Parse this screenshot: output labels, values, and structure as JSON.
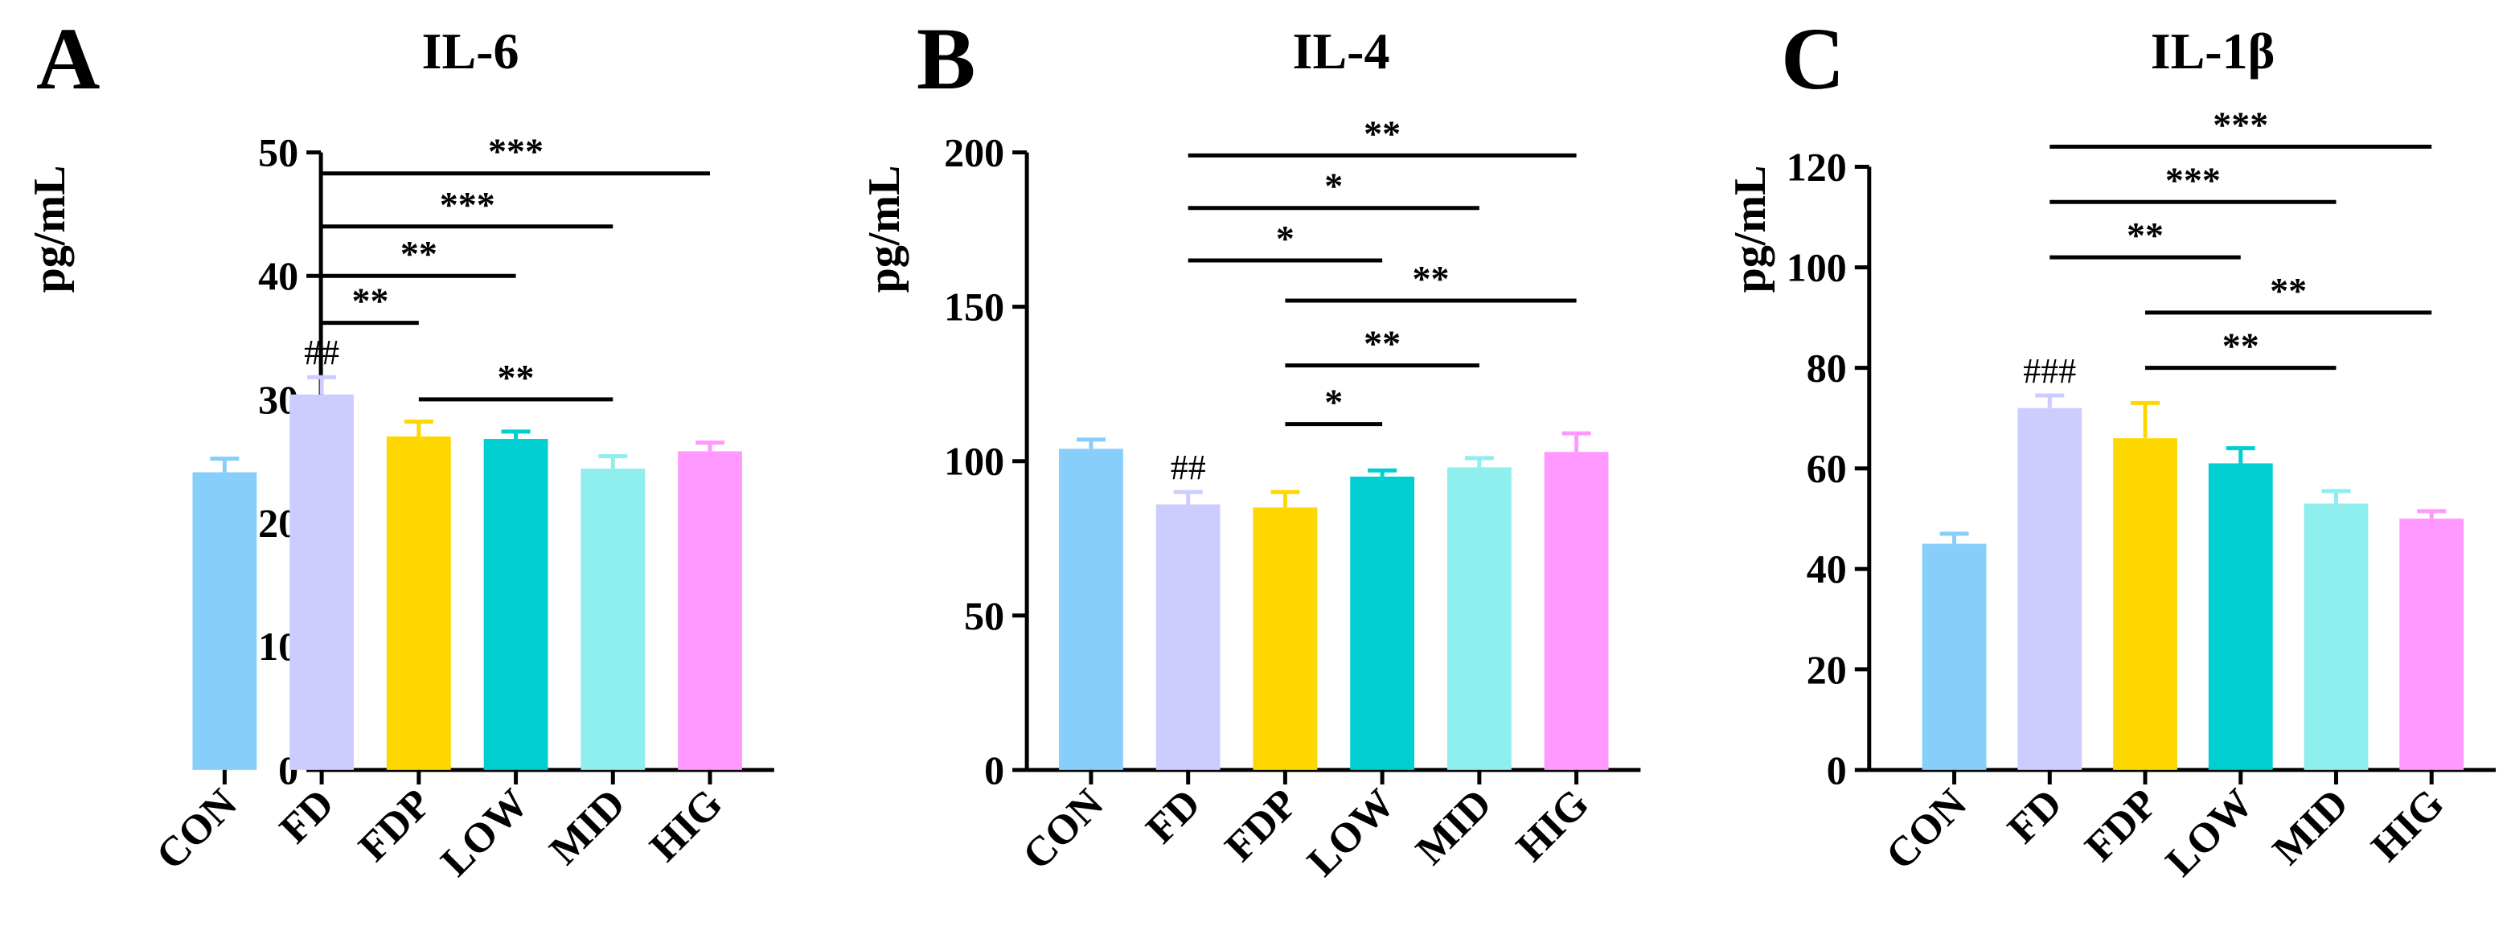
{
  "chart_data": [
    {
      "panel": "A",
      "type": "bar",
      "title": "IL-6",
      "ylabel": "pg/mL",
      "xlabel": "",
      "ylim": [
        0,
        50
      ],
      "yticks": [
        0,
        10,
        20,
        30,
        40,
        50
      ],
      "categories": [
        "CON",
        "FD",
        "FDP",
        "LOW",
        "MID",
        "HIG"
      ],
      "values": [
        24.1,
        30.4,
        27.0,
        26.8,
        24.4,
        25.8
      ],
      "errors": [
        1.1,
        1.4,
        1.2,
        0.6,
        1.0,
        0.7
      ],
      "colors": [
        "#87CEFA",
        "#CCCCFF",
        "#FFD700",
        "#00CED1",
        "#8FEEEE",
        "#FF99FF"
      ],
      "annotations": [
        {
          "category": "FD",
          "text": "##"
        }
      ],
      "comparisons": [
        {
          "from": "FD",
          "to": "HIG",
          "y": 48.3,
          "label": "***"
        },
        {
          "from": "FD",
          "to": "MID",
          "y": 44.0,
          "label": "***"
        },
        {
          "from": "FD",
          "to": "LOW",
          "y": 40.0,
          "label": "**"
        },
        {
          "from": "FD",
          "to": "FDP",
          "y": 36.2,
          "label": "**"
        },
        {
          "from": "FDP",
          "to": "MID",
          "y": 30.0,
          "label": "**"
        }
      ]
    },
    {
      "panel": "B",
      "type": "bar",
      "title": "IL-4",
      "ylabel": "pg/mL",
      "xlabel": "",
      "ylim": [
        0,
        200
      ],
      "yticks": [
        0,
        50,
        100,
        150,
        200
      ],
      "categories": [
        "CON",
        "FD",
        "FDP",
        "LOW",
        "MID",
        "HIG"
      ],
      "values": [
        104,
        86,
        85,
        95,
        98,
        103
      ],
      "errors": [
        3,
        4,
        5,
        2,
        3,
        6
      ],
      "colors": [
        "#87CEFA",
        "#CCCCFF",
        "#FFD700",
        "#00CED1",
        "#8FEEEE",
        "#FF99FF"
      ],
      "annotations": [
        {
          "category": "FD",
          "text": "##"
        }
      ],
      "comparisons": [
        {
          "from": "FD",
          "to": "HIG",
          "y": 199,
          "label": "**"
        },
        {
          "from": "FD",
          "to": "MID",
          "y": 182,
          "label": "*"
        },
        {
          "from": "FD",
          "to": "LOW",
          "y": 165,
          "label": "*"
        },
        {
          "from": "FDP",
          "to": "HIG",
          "y": 152,
          "label": "**"
        },
        {
          "from": "FDP",
          "to": "MID",
          "y": 131,
          "label": "**"
        },
        {
          "from": "FDP",
          "to": "LOW",
          "y": 112,
          "label": "*"
        }
      ]
    },
    {
      "panel": "C",
      "type": "bar",
      "title": "IL-1β",
      "ylabel": "pg/mL",
      "xlabel": "",
      "ylim": [
        0,
        120
      ],
      "yticks": [
        0,
        20,
        40,
        60,
        80,
        100,
        120
      ],
      "categories": [
        "CON",
        "FD",
        "FDP",
        "LOW",
        "MID",
        "HIG"
      ],
      "values": [
        45,
        72,
        66,
        61,
        53,
        50
      ],
      "errors": [
        2,
        2.5,
        7,
        3,
        2.5,
        1.5
      ],
      "colors": [
        "#87CEFA",
        "#CCCCFF",
        "#FFD700",
        "#00CED1",
        "#8FEEEE",
        "#FF99FF"
      ],
      "annotations": [
        {
          "category": "FD",
          "text": "###"
        }
      ],
      "comparisons": [
        {
          "from": "FD",
          "to": "HIG",
          "y": 124,
          "label": "***"
        },
        {
          "from": "FD",
          "to": "MID",
          "y": 113,
          "label": "***"
        },
        {
          "from": "FD",
          "to": "LOW",
          "y": 102,
          "label": "**"
        },
        {
          "from": "FDP",
          "to": "HIG",
          "y": 91,
          "label": "**"
        },
        {
          "from": "FDP",
          "to": "MID",
          "y": 80,
          "label": "**"
        }
      ]
    }
  ]
}
